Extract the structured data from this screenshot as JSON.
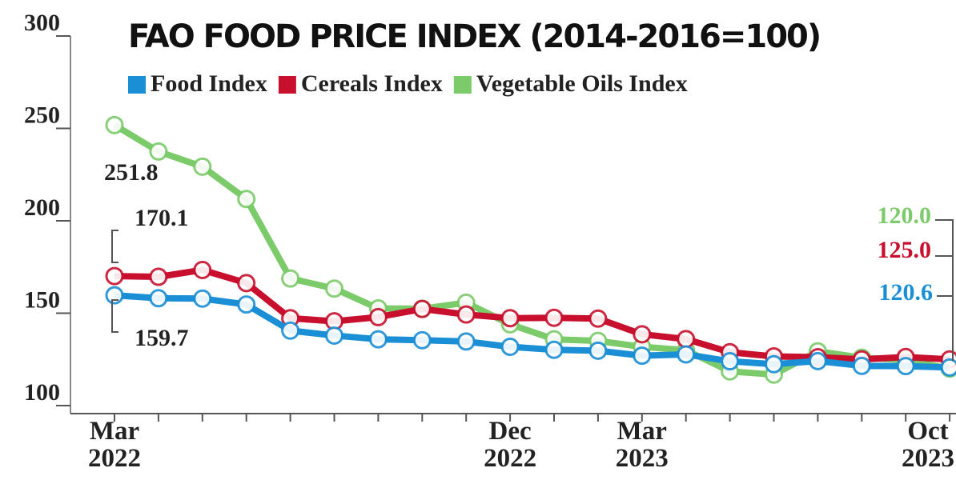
{
  "chart_data": {
    "type": "line",
    "title": "FAO FOOD PRICE INDEX (2014-2016=100)",
    "categories": [
      "Mar 2022",
      null,
      null,
      null,
      null,
      null,
      null,
      null,
      null,
      "Dec 2022",
      null,
      null,
      "Mar 2023",
      null,
      null,
      null,
      null,
      null,
      null,
      "Oct 2023"
    ],
    "series": [
      {
        "name": "Food Index",
        "color": "#1b8fd6",
        "values": [
          159.7,
          158.1,
          157.9,
          154.7,
          140.6,
          137.9,
          135.9,
          135.4,
          134.7,
          131.8,
          130.2,
          129.7,
          127.0,
          127.7,
          124.0,
          122.4,
          124.1,
          121.5,
          121.4,
          120.6
        ],
        "value_labels": [
          "159.7",
          null,
          null,
          null,
          null,
          null,
          null,
          null,
          null,
          null,
          null,
          null,
          null,
          null,
          null,
          null,
          null,
          null,
          null,
          "120.6"
        ]
      },
      {
        "name": "Cereals Index",
        "color": "#c8102e",
        "values": [
          170.1,
          169.7,
          173.4,
          166.3,
          147.3,
          145.6,
          147.9,
          152.3,
          149.3,
          147.3,
          147.5,
          147.1,
          138.6,
          136.0,
          128.9,
          126.6,
          126.2,
          125.0,
          126.3,
          125.0
        ],
        "value_labels": [
          "170.1",
          null,
          null,
          null,
          null,
          null,
          null,
          null,
          null,
          null,
          null,
          null,
          null,
          null,
          null,
          null,
          null,
          null,
          null,
          "125.0"
        ]
      },
      {
        "name": "Vegetable Oils Index",
        "color": "#7ccb6a",
        "values": [
          251.8,
          237.5,
          229.3,
          211.8,
          168.8,
          163.3,
          152.6,
          152.4,
          155.7,
          144.0,
          135.9,
          135.0,
          131.8,
          130.0,
          118.5,
          116.8,
          129.4,
          125.9,
          124.7,
          120.0
        ],
        "value_labels": [
          "251.8",
          null,
          null,
          null,
          null,
          null,
          null,
          null,
          null,
          null,
          null,
          null,
          null,
          null,
          null,
          null,
          null,
          null,
          null,
          "120.0"
        ]
      }
    ],
    "ylim": [
      100,
      300
    ],
    "yticks": [
      100,
      150,
      200,
      250,
      300
    ]
  }
}
